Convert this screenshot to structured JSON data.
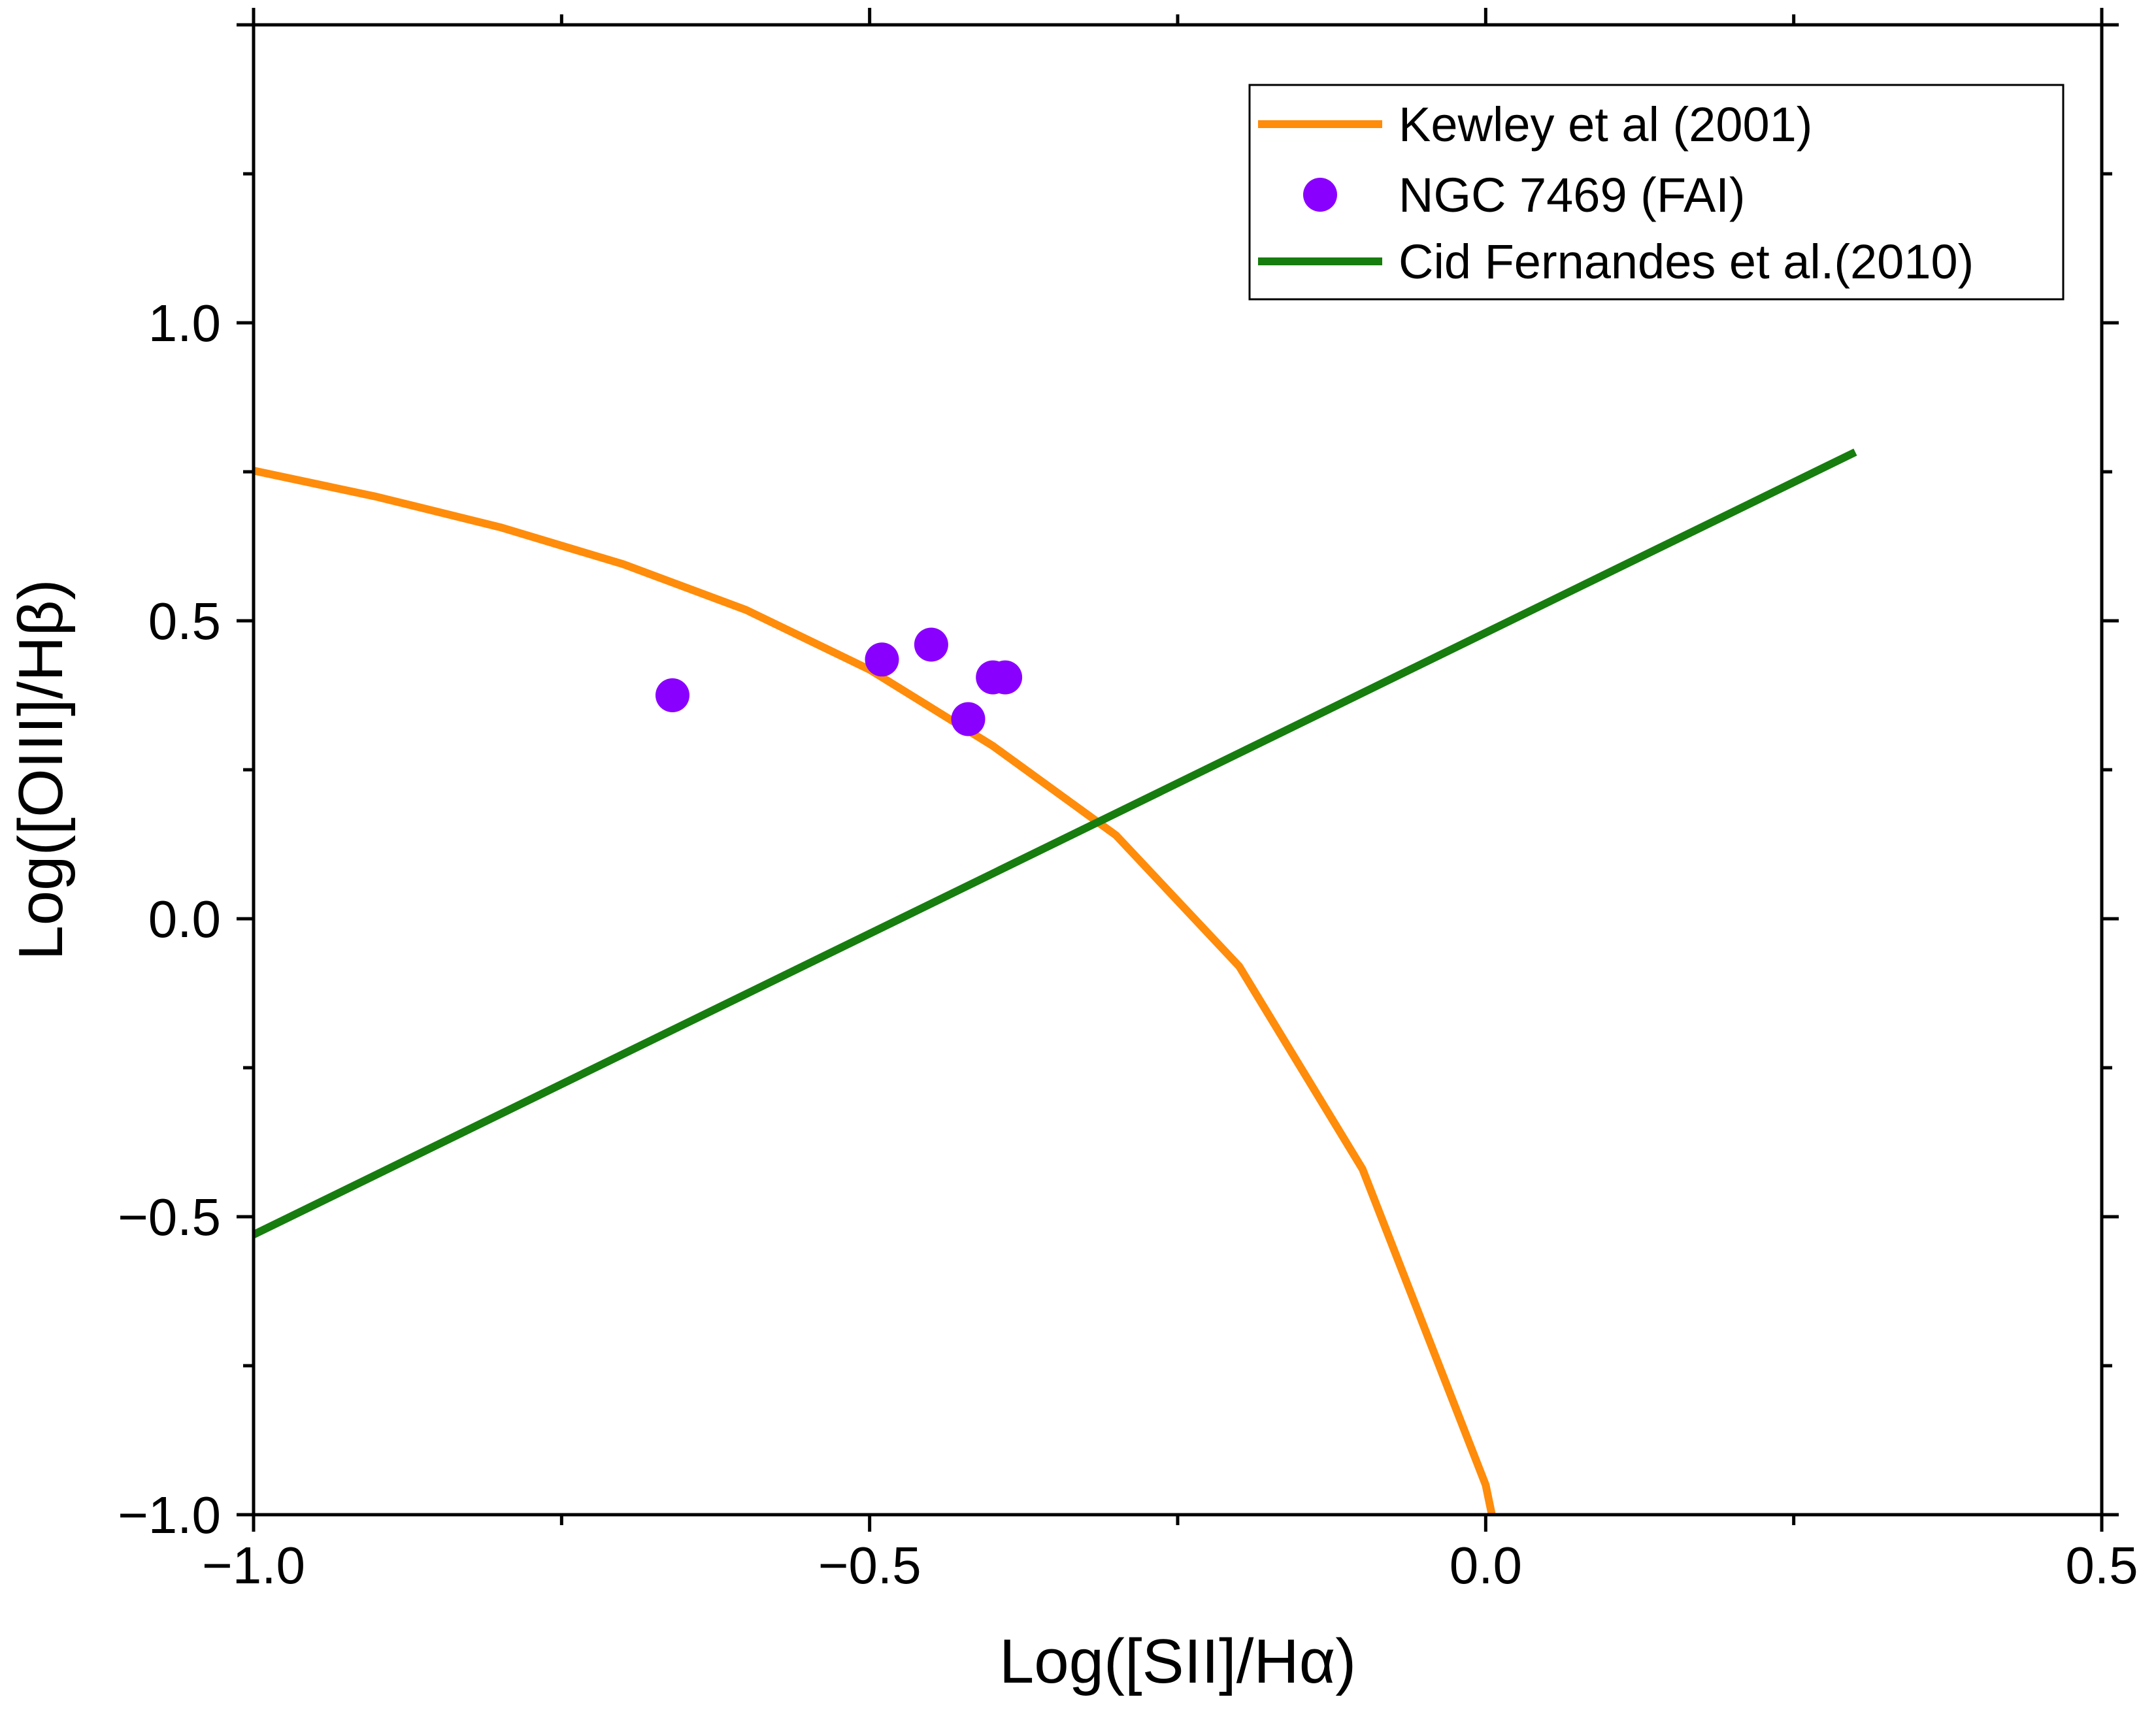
{
  "chart_data": {
    "type": "scatter",
    "title": "",
    "xlabel": "Log([SII]/Hα)",
    "ylabel": "Log([OIII]/Hβ)",
    "xlim": [
      -1.0,
      0.5
    ],
    "ylim": [
      -1.0,
      1.5
    ],
    "xticks": [
      -1.0,
      -0.5,
      0.0,
      0.5
    ],
    "xtick_labels": [
      "−1.0",
      "−0.5",
      "0.0",
      "0.5"
    ],
    "yticks": [
      -1.0,
      -0.5,
      0.0,
      0.5,
      1.0
    ],
    "ytick_labels": [
      "−1.0",
      "−0.5",
      "0.0",
      "0.5",
      "1.0"
    ],
    "legend_position": "top-right",
    "grid": false,
    "series": [
      {
        "name": "Kewley et al (2001)",
        "kind": "line",
        "color": "#ff8c0a",
        "x": [
          -1.0,
          -0.9,
          -0.8,
          -0.7,
          -0.6,
          -0.5,
          -0.4,
          -0.3,
          -0.2,
          -0.1,
          0.0,
          0.005
        ],
        "y": [
          0.752,
          0.708,
          0.657,
          0.595,
          0.518,
          0.418,
          0.29,
          0.14,
          -0.08,
          -0.42,
          -0.95,
          -1.0
        ]
      },
      {
        "name": "NGC 7469 (FAI)",
        "kind": "scatter",
        "color": "#8a00ff",
        "x": [
          -0.66,
          -0.49,
          -0.45,
          -0.42,
          -0.4,
          -0.39
        ],
        "y": [
          0.375,
          0.435,
          0.46,
          0.335,
          0.405,
          0.405
        ]
      },
      {
        "name": "Cid Fernandes et al.(2010)",
        "kind": "line",
        "color": "#167d0e",
        "x": [
          -1.0,
          0.3
        ],
        "y": [
          -0.53,
          0.783
        ]
      }
    ]
  }
}
